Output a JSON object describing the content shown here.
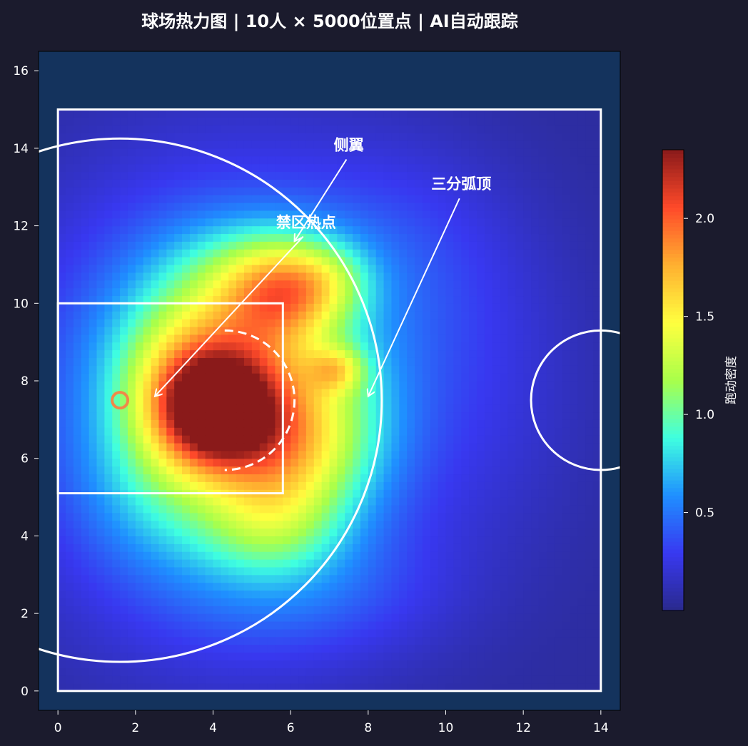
{
  "chart_data": {
    "type": "heatmap",
    "title": "球场热力图 | 10人 × 5000位置点 | AI自动跟踪",
    "xlabel": "",
    "ylabel": "",
    "xlim": [
      -0.5,
      14.5
    ],
    "ylim": [
      -0.5,
      16.5
    ],
    "x_ticks": [
      "0",
      "2",
      "4",
      "6",
      "8",
      "10",
      "12",
      "14"
    ],
    "x_tick_values": [
      0,
      2,
      4,
      6,
      8,
      10,
      12,
      14
    ],
    "y_ticks": [
      "0",
      "2",
      "4",
      "6",
      "8",
      "10",
      "12",
      "14",
      "16"
    ],
    "y_tick_values": [
      0,
      2,
      4,
      6,
      8,
      10,
      12,
      14,
      16
    ],
    "colorbar": {
      "label": "跑动密度",
      "range": [
        0,
        2.35
      ],
      "ticks": [
        "0.5",
        "1.0",
        "1.5",
        "2.0"
      ],
      "tick_values": [
        0.5,
        1.0,
        1.5,
        2.0
      ],
      "colormap": [
        "#2a2a8c",
        "#3838f0",
        "#1f8fff",
        "#3fffe0",
        "#a8ff4a",
        "#ffff3f",
        "#ffb030",
        "#ff4a2a",
        "#8a1a1a"
      ]
    },
    "hotspots": [
      {
        "x": 4.0,
        "y": 7.2,
        "sigma_x": 1.1,
        "sigma_y": 1.0,
        "weight": 1.35
      },
      {
        "x": 4.6,
        "y": 8.6,
        "sigma_x": 1.5,
        "sigma_y": 1.4,
        "weight": 0.55
      },
      {
        "x": 3.2,
        "y": 8.4,
        "sigma_x": 1.3,
        "sigma_y": 1.3,
        "weight": 0.45
      },
      {
        "x": 5.6,
        "y": 6.0,
        "sigma_x": 1.2,
        "sigma_y": 1.3,
        "weight": 0.55
      },
      {
        "x": 5.8,
        "y": 10.3,
        "sigma_x": 1.0,
        "sigma_y": 0.9,
        "weight": 0.75
      },
      {
        "x": 5.0,
        "y": 10.8,
        "sigma_x": 1.6,
        "sigma_y": 1.0,
        "weight": 0.4
      },
      {
        "x": 7.2,
        "y": 8.3,
        "sigma_x": 0.5,
        "sigma_y": 0.4,
        "weight": 0.55
      },
      {
        "x": 7.0,
        "y": 10.6,
        "sigma_x": 0.8,
        "sigma_y": 0.7,
        "weight": 0.35
      },
      {
        "x": 6.8,
        "y": 6.8,
        "sigma_x": 1.3,
        "sigma_y": 1.6,
        "weight": 0.5
      },
      {
        "x": 5.5,
        "y": 4.2,
        "sigma_x": 1.2,
        "sigma_y": 0.9,
        "weight": 0.35
      },
      {
        "x": 3.0,
        "y": 5.5,
        "sigma_x": 1.5,
        "sigma_y": 1.5,
        "weight": 0.35
      },
      {
        "x": 4.5,
        "y": 7.5,
        "sigma_x": 3.4,
        "sigma_y": 3.8,
        "weight": 0.8
      },
      {
        "x": 6.5,
        "y": 2.5,
        "sigma_x": 2.5,
        "sigma_y": 1.2,
        "weight": 0.18
      },
      {
        "x": 9.0,
        "y": 11.5,
        "sigma_x": 2.0,
        "sigma_y": 2.0,
        "weight": 0.15
      },
      {
        "x": 11.5,
        "y": 8.0,
        "sigma_x": 1.8,
        "sigma_y": 3.0,
        "weight": 0.1
      }
    ],
    "court": {
      "boundary": {
        "x0": 0,
        "y0": 0,
        "x1": 14,
        "y1": 15
      },
      "key": {
        "x0": 0,
        "y0": 5.1,
        "x1": 5.8,
        "y1": 10.0
      },
      "free_throw_circle": {
        "cx": 4.3,
        "cy": 7.5,
        "r": 1.8
      },
      "three_point_arc": {
        "cx": 1.6,
        "cy": 7.5,
        "r": 6.75
      },
      "hoop": {
        "x": 1.6,
        "y": 7.5
      },
      "center_circle": {
        "cx": 14,
        "cy": 7.5,
        "r": 1.8
      }
    },
    "annotations": [
      {
        "text": "侧翼",
        "text_x": 7.5,
        "text_y": 14.1,
        "arrow_x": 6.1,
        "arrow_y": 11.6
      },
      {
        "text": "三分弧顶",
        "text_x": 10.4,
        "text_y": 13.1,
        "arrow_x": 8.0,
        "arrow_y": 7.6
      },
      {
        "text": "禁区热点",
        "text_x": 6.4,
        "text_y": 12.1,
        "arrow_x": 2.5,
        "arrow_y": 7.6
      }
    ],
    "grid": false,
    "legend": "colorbar-right"
  },
  "colors": {
    "figure_bg": "#1b1b2d",
    "plot_bg": "#14335d",
    "court_line": "#ffffff",
    "hoop": "#f08848",
    "text": "#ffffff"
  }
}
